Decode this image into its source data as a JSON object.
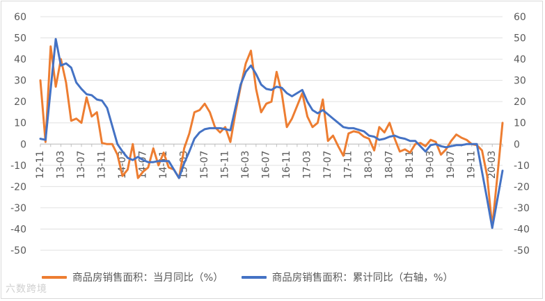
{
  "watermark": "六数跨境",
  "chart_data": {
    "type": "line",
    "ylim_left": [
      -50,
      60
    ],
    "ylim_right": [
      -50,
      60
    ],
    "y_ticks": [
      60,
      50,
      40,
      30,
      20,
      10,
      0,
      -10,
      -20,
      -30,
      -40,
      -50
    ],
    "x_tick_labels": [
      "12-11",
      "13-03",
      "13-07",
      "13-11",
      "14-03",
      "14-07",
      "14-11",
      "15-03",
      "15-07",
      "15-11",
      "16-03",
      "16-07",
      "16-11",
      "17-03",
      "17-07",
      "17-11",
      "18-03",
      "18-07",
      "18-11",
      "19-03",
      "19-07",
      "19-11",
      "20-03"
    ],
    "legend_position": "bottom",
    "series": [
      {
        "name": "商品房销售面积：当月同比（%）",
        "axis": "left",
        "color": "#ed7d31",
        "x": [
          "12-11",
          "12-12",
          "13-01",
          "13-02",
          "13-03",
          "13-04",
          "13-05",
          "13-06",
          "13-07",
          "13-08",
          "13-09",
          "13-10",
          "13-11",
          "13-12",
          "14-01",
          "14-02",
          "14-03",
          "14-04",
          "14-05",
          "14-06",
          "14-07",
          "14-08",
          "14-09",
          "14-10",
          "14-11",
          "14-12",
          "15-01",
          "15-02",
          "15-03",
          "15-04",
          "15-05",
          "15-06",
          "15-07",
          "15-08",
          "15-09",
          "15-10",
          "15-11",
          "15-12",
          "16-01",
          "16-02",
          "16-03",
          "16-04",
          "16-05",
          "16-06",
          "16-07",
          "16-08",
          "16-09",
          "16-10",
          "16-11",
          "16-12",
          "17-01",
          "17-02",
          "17-03",
          "17-04",
          "17-05",
          "17-06",
          "17-07",
          "17-08",
          "17-09",
          "17-10",
          "17-11",
          "17-12",
          "18-01",
          "18-02",
          "18-03",
          "18-04",
          "18-05",
          "18-06",
          "18-07",
          "18-08",
          "18-09",
          "18-10",
          "18-11",
          "18-12",
          "19-01",
          "19-02",
          "19-03",
          "19-04",
          "19-05",
          "19-06",
          "19-07",
          "19-08",
          "19-09",
          "19-10",
          "19-11",
          "19-12",
          "20-01",
          "20-02",
          "20-03",
          "20-04",
          "20-05"
        ],
        "values": [
          30,
          1,
          46,
          27,
          40,
          29,
          11,
          12,
          10,
          22,
          13,
          15,
          0.5,
          0,
          0,
          -5,
          -15,
          -12,
          0,
          -16,
          -13,
          -11,
          -2,
          -10,
          -4,
          -11,
          -12,
          -16,
          -2,
          5,
          15,
          16,
          19,
          15,
          8,
          5.5,
          8,
          1,
          15,
          27,
          38,
          44,
          26,
          15,
          19,
          20,
          34,
          24,
          8,
          12,
          18,
          24,
          13,
          8,
          10,
          21,
          1.5,
          4,
          -1,
          -5.5,
          5,
          6,
          5.5,
          3.5,
          2.5,
          -3,
          8,
          5.5,
          10,
          2.5,
          -3.5,
          -2.5,
          -4,
          0,
          0.5,
          -1,
          2,
          1,
          -5,
          -2.5,
          1.5,
          4.5,
          3,
          2,
          0,
          -0.5,
          -3,
          -15,
          -39,
          -15,
          10
        ]
      },
      {
        "name": "商品房销售面积：累计同比（右轴，%）",
        "axis": "right",
        "color": "#4472c4",
        "x": [
          "12-11",
          "12-12",
          "13-02",
          "13-03",
          "13-04",
          "13-05",
          "13-06",
          "13-07",
          "13-08",
          "13-09",
          "13-10",
          "13-11",
          "13-12",
          "14-02",
          "14-03",
          "14-04",
          "14-05",
          "14-06",
          "14-07",
          "14-08",
          "14-09",
          "14-10",
          "14-11",
          "14-12",
          "15-02",
          "15-03",
          "15-04",
          "15-05",
          "15-06",
          "15-07",
          "15-08",
          "15-09",
          "15-10",
          "15-11",
          "15-12",
          "16-02",
          "16-03",
          "16-04",
          "16-05",
          "16-06",
          "16-07",
          "16-08",
          "16-09",
          "16-10",
          "16-11",
          "16-12",
          "17-02",
          "17-03",
          "17-04",
          "17-05",
          "17-06",
          "17-07",
          "17-08",
          "17-09",
          "17-10",
          "17-11",
          "17-12",
          "18-02",
          "18-03",
          "18-04",
          "18-05",
          "18-06",
          "18-07",
          "18-08",
          "18-09",
          "18-10",
          "18-11",
          "18-12",
          "19-02",
          "19-03",
          "19-04",
          "19-05",
          "19-06",
          "19-07",
          "19-08",
          "19-09",
          "19-10",
          "19-11",
          "19-12",
          "20-02",
          "20-03",
          "20-04",
          "20-05"
        ],
        "values": [
          2.5,
          2,
          49.5,
          37,
          38,
          36,
          29,
          26,
          23.5,
          23,
          21,
          20.5,
          17,
          0,
          -3.5,
          -6.5,
          -7.5,
          -6,
          -7.5,
          -8.5,
          -8.5,
          -8,
          -8,
          -8,
          -16,
          -9,
          -3.5,
          2.5,
          5.5,
          7,
          7.5,
          7.5,
          7.5,
          7,
          6.5,
          28,
          34,
          37,
          33,
          28,
          26,
          25.5,
          27,
          26.5,
          24,
          22.5,
          25.5,
          20,
          16,
          14.5,
          16,
          14,
          12,
          10,
          8,
          7.5,
          7.5,
          6,
          4,
          3.5,
          2,
          2.5,
          3.5,
          4,
          3,
          2.5,
          1.5,
          1.5,
          -3.5,
          -0.5,
          0,
          -1,
          -1.5,
          -1,
          -0.5,
          -0.5,
          0,
          0,
          0,
          -26,
          -39.5,
          -26,
          -12.5
        ]
      }
    ]
  }
}
